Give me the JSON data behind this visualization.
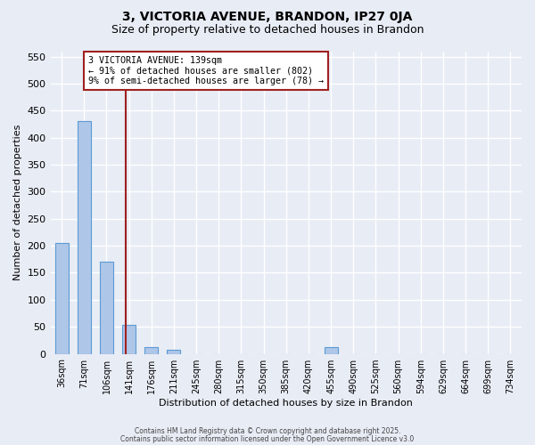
{
  "title1": "3, VICTORIA AVENUE, BRANDON, IP27 0JA",
  "title2": "Size of property relative to detached houses in Brandon",
  "xlabel": "Distribution of detached houses by size in Brandon",
  "ylabel": "Number of detached properties",
  "bar_labels": [
    "36sqm",
    "71sqm",
    "106sqm",
    "141sqm",
    "176sqm",
    "211sqm",
    "245sqm",
    "280sqm",
    "315sqm",
    "350sqm",
    "385sqm",
    "420sqm",
    "455sqm",
    "490sqm",
    "525sqm",
    "560sqm",
    "594sqm",
    "629sqm",
    "664sqm",
    "699sqm",
    "734sqm"
  ],
  "bar_values": [
    205,
    430,
    170,
    53,
    13,
    7,
    0,
    0,
    0,
    0,
    0,
    0,
    13,
    0,
    0,
    0,
    0,
    0,
    0,
    0,
    0
  ],
  "bar_color": "#aec6e8",
  "bar_edge_color": "#5b9bd5",
  "bg_color": "#e8ecf5",
  "grid_color": "#ffffff",
  "vline_x": 2.85,
  "vline_color": "#a02020",
  "annotation_text": "3 VICTORIA AVENUE: 139sqm\n← 91% of detached houses are smaller (802)\n9% of semi-detached houses are larger (78) →",
  "annotation_box_color": "#ffffff",
  "annotation_box_edge": "#a02020",
  "ylim": [
    0,
    560
  ],
  "yticks": [
    0,
    50,
    100,
    150,
    200,
    250,
    300,
    350,
    400,
    450,
    500,
    550
  ],
  "bar_width": 0.6,
  "footnote1": "Contains HM Land Registry data © Crown copyright and database right 2025.",
  "footnote2": "Contains public sector information licensed under the Open Government Licence v3.0"
}
